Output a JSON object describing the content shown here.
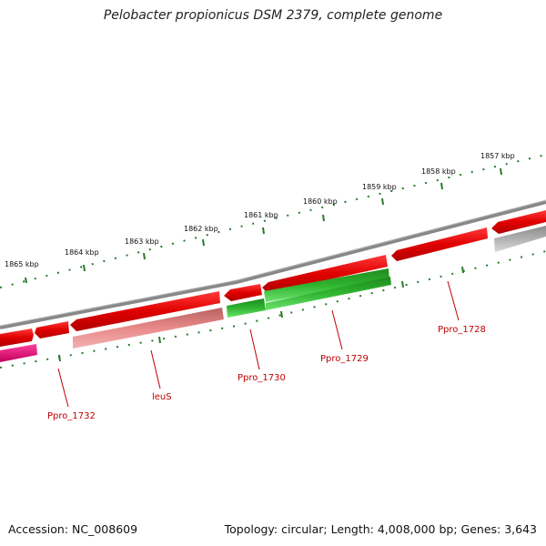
{
  "title": "Pelobacter propionicus DSM 2379, complete genome",
  "footer": {
    "accession": "Accession: NC_008609",
    "stats": "Topology: circular; Length: 4,008,000 bp; Genes: 3,643"
  },
  "kbp_ticks": [
    "1865 kbp",
    "1864 kbp",
    "1863 kbp",
    "1862 kbp",
    "1861 kbp",
    "1860 kbp",
    "1859 kbp",
    "1858 kbp",
    "1857 kbp"
  ],
  "gene_labels": [
    "Ppro_1732",
    "leuS",
    "Ppro_1730",
    "Ppro_1729",
    "Ppro_1728"
  ],
  "colors": {
    "backbone": "#7a7a7a",
    "forward_gene": "#e00000",
    "gene_label": "#c00000",
    "green_gene": "#2fb52f",
    "pink_gene": "#e0106a",
    "faded_red": "#e88888",
    "grey_gene": "#b8b8b8",
    "tick": "#2a7a2a"
  }
}
